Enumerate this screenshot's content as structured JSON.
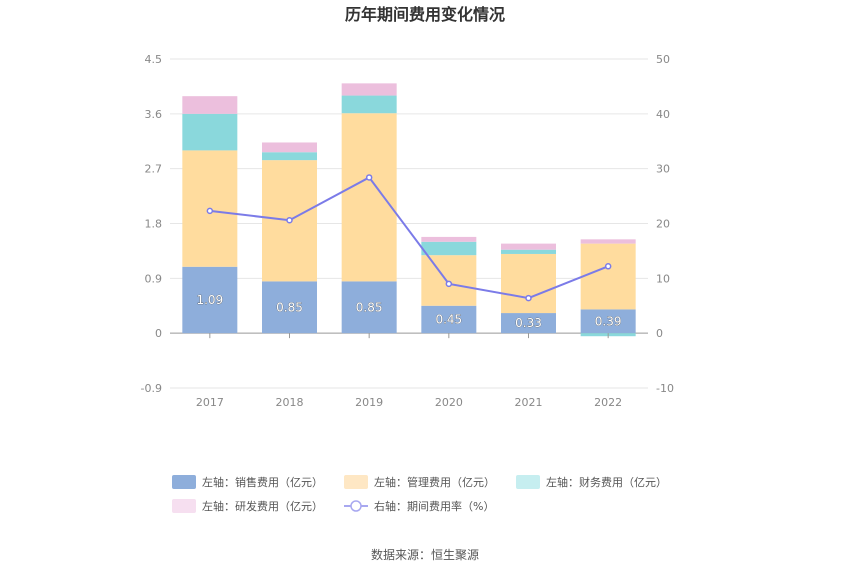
{
  "chart_data": {
    "type": "bar",
    "title": "历年期间费用变化情况",
    "categories": [
      "2017",
      "2018",
      "2019",
      "2020",
      "2021",
      "2022"
    ],
    "left_axis": {
      "ylim": [
        -0.9,
        4.5
      ],
      "ticks": [
        "4.5",
        "3.6",
        "2.7",
        "1.8",
        "0.9",
        "0",
        "-0.9"
      ],
      "tick_values": [
        4.5,
        3.6,
        2.7,
        1.8,
        0.9,
        0,
        -0.9
      ]
    },
    "right_axis": {
      "ylim": [
        -10,
        50
      ],
      "ticks": [
        "50",
        "40",
        "30",
        "20",
        "10",
        "0",
        "-10"
      ],
      "tick_values": [
        50,
        40,
        30,
        20,
        10,
        0,
        -10
      ]
    },
    "stacked": true,
    "series": [
      {
        "name": "左轴：销售费用（亿元）",
        "axis": "left",
        "type": "bar",
        "color": "#8eaedb",
        "values": [
          1.09,
          0.85,
          0.85,
          0.45,
          0.33,
          0.39
        ],
        "labels": [
          "1.09",
          "0.85",
          "0.85",
          "0.45",
          "0.33",
          "0.39"
        ]
      },
      {
        "name": "左轴：管理费用（亿元）",
        "axis": "left",
        "type": "bar",
        "color": "#ffdc9e",
        "values": [
          1.91,
          1.99,
          2.76,
          0.83,
          0.97,
          1.08
        ]
      },
      {
        "name": "左轴：财务费用（亿元）",
        "axis": "left",
        "type": "bar",
        "color": "#8ad8dc",
        "values": [
          0.6,
          0.13,
          0.29,
          0.22,
          0.07,
          -0.05
        ]
      },
      {
        "name": "左轴：研发费用（亿元）",
        "axis": "left",
        "type": "bar",
        "color": "#ecbfdd",
        "values": [
          0.29,
          0.16,
          0.2,
          0.08,
          0.1,
          0.07
        ]
      },
      {
        "name": "右轴：期间费用率（%）",
        "axis": "right",
        "type": "line",
        "color": "#7b7be8",
        "values": [
          22.3,
          20.6,
          28.4,
          9.0,
          6.4,
          12.2
        ]
      }
    ],
    "legend_position": "bottom",
    "grid": true
  },
  "source": "数据来源：恒生聚源"
}
